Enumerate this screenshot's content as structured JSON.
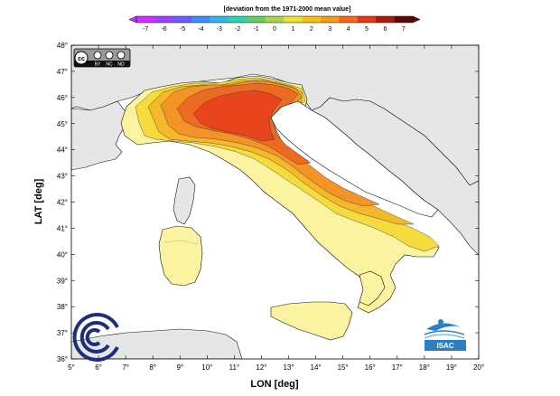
{
  "colorbar": {
    "title": "[deviation from the 1971-2000 mean value]",
    "ticks": [
      "-7",
      "-6",
      "-5",
      "-4",
      "-3",
      "-2",
      "-1",
      "0",
      "1",
      "2",
      "3",
      "4",
      "5",
      "6",
      "7"
    ],
    "colors": [
      "#cc33ff",
      "#a040ff",
      "#6a5cff",
      "#3a8cff",
      "#33b5e8",
      "#33d0b0",
      "#66cc66",
      "#a8d84a",
      "#e8e23a",
      "#f5c21c",
      "#f59a1a",
      "#f26b1a",
      "#e03a16",
      "#a81c10",
      "#5a0a06"
    ]
  },
  "axes": {
    "x_label": "LON [deg]",
    "y_label": "LAT [deg]",
    "x_ticks": [
      "5°",
      "6°",
      "7°",
      "8°",
      "9°",
      "10°",
      "11°",
      "12°",
      "13°",
      "14°",
      "15°",
      "16°",
      "17°",
      "18°",
      "19°",
      "20°"
    ],
    "y_ticks": [
      "48°",
      "47°",
      "46°",
      "45°",
      "44°",
      "43°",
      "42°",
      "41°",
      "40°",
      "39°",
      "38°",
      "37°",
      "36°"
    ]
  },
  "license_badge": {
    "label_cc": "cc",
    "label_by": "BY",
    "label_nc": "NC",
    "label_nd": "ND"
  },
  "logos": {
    "isac_label": "ISAC",
    "cnr_icon": "cnr-logo-icon",
    "isac_icon": "isac-logo-icon"
  },
  "map_colors": {
    "background_land": "#e8e8e8",
    "sea": "#ffffff",
    "band_pale": "#fbf3a0",
    "band_yellow": "#f5dc3c",
    "band_gold": "#f5b82a",
    "band_orange": "#f29428",
    "band_deep": "#ec6a22",
    "band_core": "#e8441e"
  }
}
